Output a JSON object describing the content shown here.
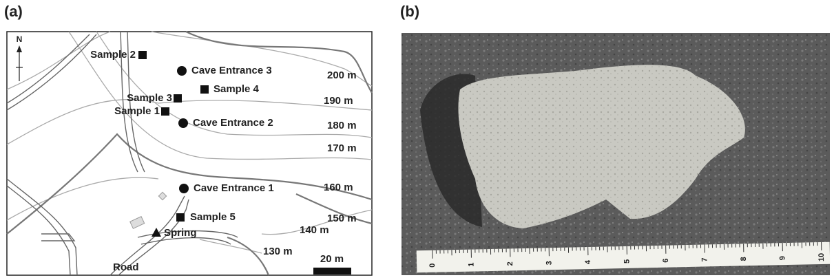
{
  "panels": {
    "a": "(a)",
    "b": "(b)"
  },
  "map": {
    "north": "N",
    "samples": [
      "Sample 1",
      "Sample 2",
      "Sample 3",
      "Sample 4",
      "Sample 5"
    ],
    "caves": [
      "Cave Entrance 1",
      "Cave Entrance 2",
      "Cave Entrance 3"
    ],
    "spring": "Spring",
    "road": "Road",
    "contours": [
      "130 m",
      "140 m",
      "150 m",
      "160 m",
      "170 m",
      "180 m",
      "190 m",
      "200 m"
    ],
    "scale": "20 m"
  },
  "photo": {
    "ruler": [
      "0",
      "1",
      "2",
      "3",
      "4",
      "5",
      "6",
      "7",
      "8",
      "9",
      "10"
    ]
  }
}
